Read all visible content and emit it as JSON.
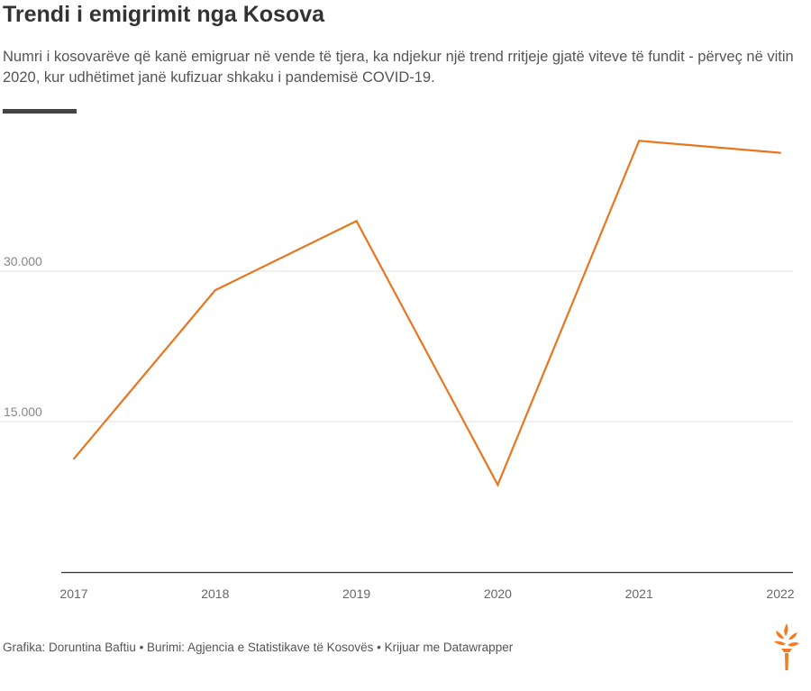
{
  "header": {
    "title": "Trendi i emigrimit nga Kosova",
    "subtitle": "Numri i kosovarëve që kanë emigruar në vende të tjera, ka ndjekur një trend rritjeje gjatë viteve të fundit - përveç në vitin 2020, kur udhëtimet janë kufizuar shkaku i pandemisë COVID-19."
  },
  "chart_data": {
    "type": "line",
    "categories": [
      "2017",
      "2018",
      "2019",
      "2020",
      "2021",
      "2022"
    ],
    "series": [
      {
        "values": [
          11300,
          28100,
          35000,
          8700,
          43000,
          41800
        ],
        "color": "#e8761f"
      }
    ],
    "y_ticks": [
      {
        "value": 15000,
        "label": "15.000"
      },
      {
        "value": 30000,
        "label": "30.000"
      }
    ],
    "ylim": [
      0,
      44000
    ],
    "grid": true,
    "colors": {
      "line": "#e8761f",
      "grid": "#e2e2e2",
      "axis": "#333333",
      "tick_label": "#888888"
    }
  },
  "footer": {
    "credits": "Grafika: Doruntina Baftiu • Burimi: Agjencia e Statistikave të Kosovës • Krijuar me Datawrapper"
  },
  "logo": {
    "icon": "torch-icon",
    "color": "#f47920"
  }
}
